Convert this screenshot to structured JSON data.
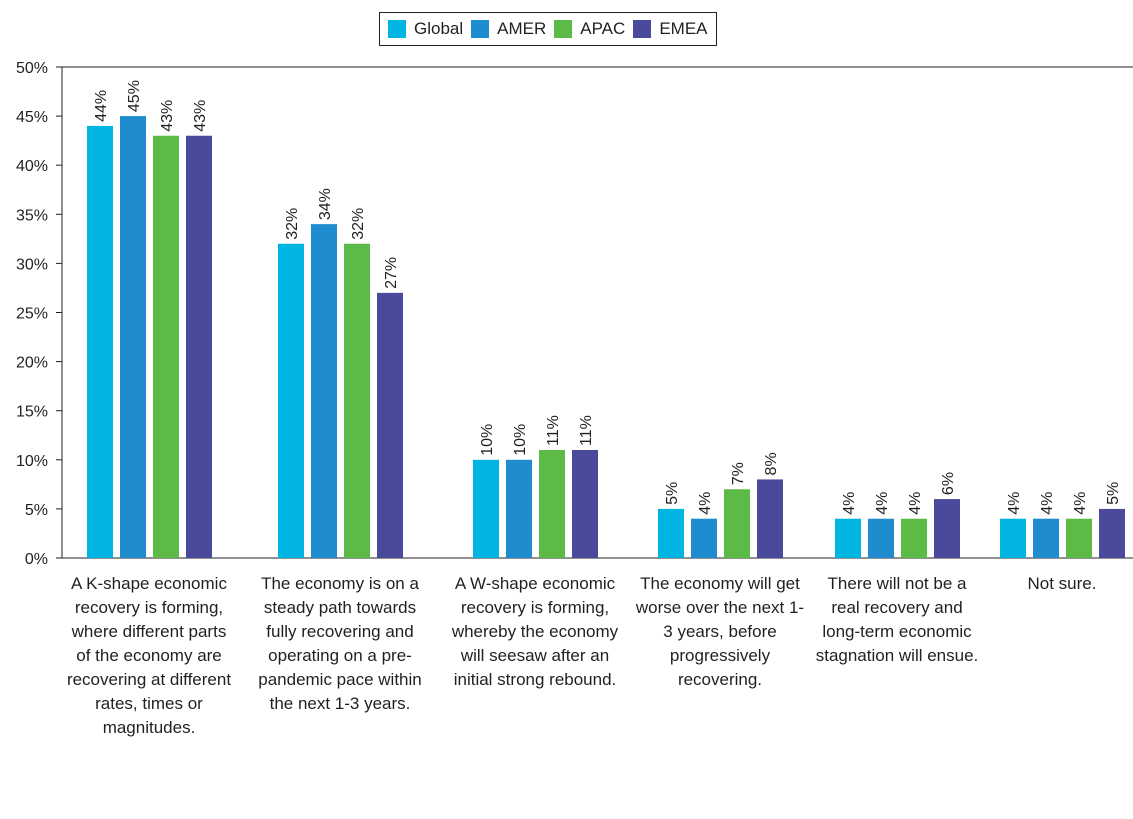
{
  "chart_data": {
    "type": "bar",
    "categories": [
      "A K-shape economic recovery is forming, where different parts of the economy are recovering at different rates, times or magnitudes.",
      "The economy is on a steady path towards fully recovering and operating on a pre-pandemic pace within the next 1-3 years.",
      "A W-shape economic recovery is forming, whereby the economy will seesaw after an initial strong rebound.",
      "The economy will get worse over the next 1-3 years, before progressively recovering.",
      "There will not be a real recovery and long-term economic stagnation will ensue.",
      "Not sure."
    ],
    "series": [
      {
        "name": "Global",
        "color": "#00b5e2",
        "values": [
          44,
          32,
          10,
          5,
          4,
          4
        ]
      },
      {
        "name": "AMER",
        "color": "#1f8ccf",
        "values": [
          45,
          34,
          10,
          4,
          4,
          4
        ]
      },
      {
        "name": "APAC",
        "color": "#5bbb46",
        "values": [
          43,
          32,
          11,
          7,
          4,
          4
        ]
      },
      {
        "name": "EMEA",
        "color": "#4a4a9c",
        "values": [
          43,
          27,
          11,
          8,
          6,
          5
        ]
      }
    ],
    "ylim": [
      0,
      50
    ],
    "yticks": [
      "0%",
      "5%",
      "10%",
      "15%",
      "20%",
      "25%",
      "30%",
      "35%",
      "40%",
      "45%",
      "50%"
    ],
    "value_suffix": "%",
    "legend": "top-center",
    "grid": false,
    "title": "",
    "xlabel": "",
    "ylabel": ""
  }
}
